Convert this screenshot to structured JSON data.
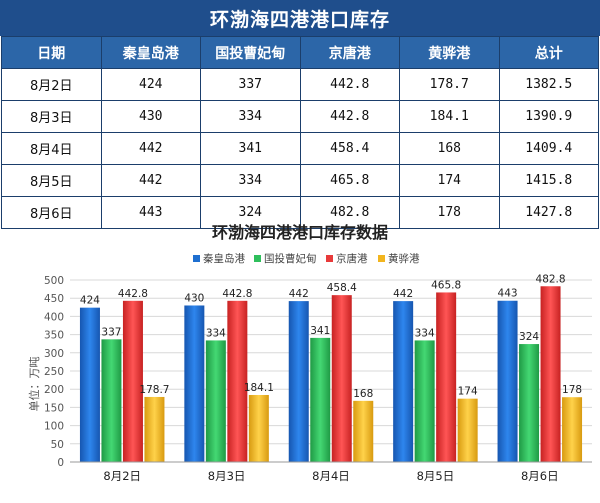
{
  "title": "环渤海四港港口库存",
  "table": {
    "headers": [
      "日期",
      "秦皇岛港",
      "国投曹妃甸",
      "京唐港",
      "黄骅港",
      "总计"
    ],
    "rows": [
      [
        "8月2日",
        "424",
        "337",
        "442.8",
        "178.7",
        "1382.5"
      ],
      [
        "8月3日",
        "430",
        "334",
        "442.8",
        "184.1",
        "1390.9"
      ],
      [
        "8月4日",
        "442",
        "341",
        "458.4",
        "168",
        "1409.4"
      ],
      [
        "8月5日",
        "442",
        "334",
        "465.8",
        "174",
        "1415.8"
      ],
      [
        "8月6日",
        "443",
        "324",
        "482.8",
        "178",
        "1427.8"
      ]
    ]
  },
  "chart_data": {
    "type": "bar",
    "title": "环渤海四港港口库存数据",
    "ylabel": "单位：万吨",
    "xlabel": "",
    "categories": [
      "8月2日",
      "8月3日",
      "8月4日",
      "8月5日",
      "8月6日"
    ],
    "series": [
      {
        "name": "秦皇岛港",
        "values": [
          424,
          430,
          442,
          442,
          443
        ],
        "labels": [
          "424",
          "430",
          "442",
          "442",
          "443"
        ]
      },
      {
        "name": "国投曹妃甸",
        "values": [
          337,
          334,
          341,
          334,
          324
        ],
        "labels": [
          "337",
          "334",
          "341",
          "334",
          "324"
        ]
      },
      {
        "name": "京唐港",
        "values": [
          442.8,
          442.8,
          458.4,
          465.8,
          482.8
        ],
        "labels": [
          "442.8",
          "442.8",
          "458.4",
          "465.8",
          "482.8"
        ]
      },
      {
        "name": "黄骅港",
        "values": [
          178.7,
          184.1,
          168,
          174,
          178
        ],
        "labels": [
          "178.7",
          "184.1",
          "168",
          "174",
          "178"
        ]
      }
    ],
    "ylim": [
      0,
      500
    ],
    "yticks": [
      0,
      50,
      100,
      150,
      200,
      250,
      300,
      350,
      400,
      450,
      500
    ],
    "grid": true,
    "legend_position": "top",
    "colors": [
      "#1e6fd0",
      "#2fbf5c",
      "#e83a3a",
      "#f2b51e"
    ]
  }
}
